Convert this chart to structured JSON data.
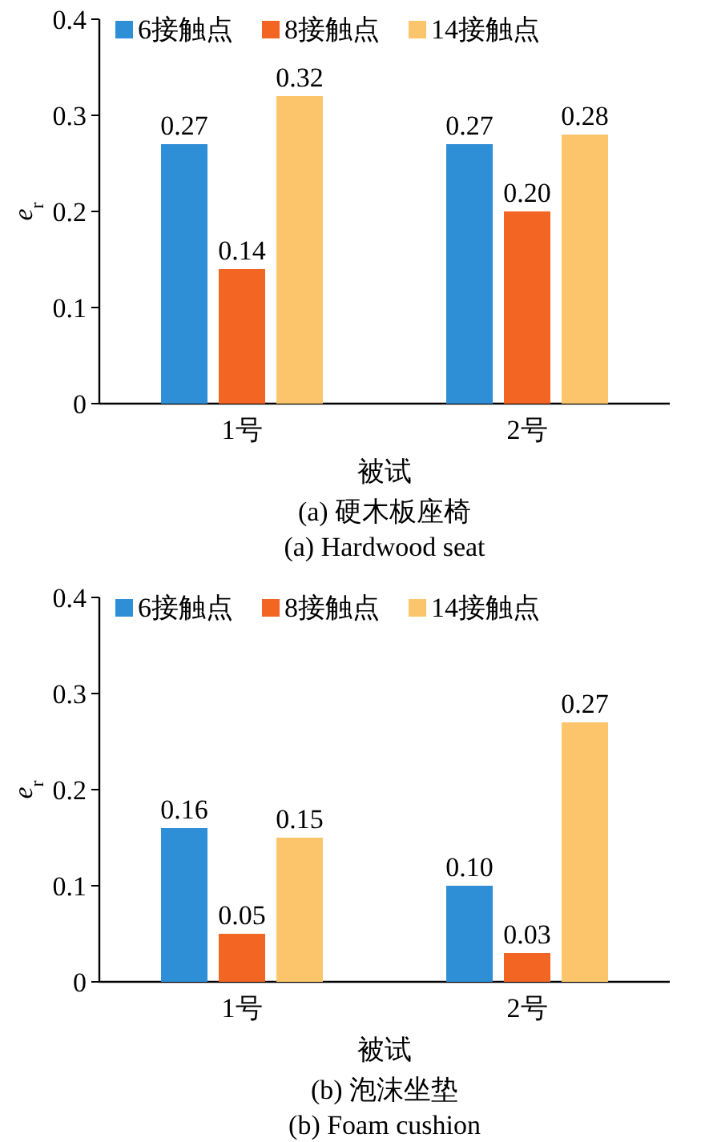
{
  "chart_data": [
    {
      "type": "bar",
      "title": "(a) 硬木板座椅",
      "subtitle": "(a) Hardwood seat",
      "xlabel": "被试",
      "ylabel": "e$_{r}$",
      "categories": [
        "1号",
        "2号"
      ],
      "series": [
        {
          "name": "6接触点",
          "color": "#2e8fd6",
          "values": [
            0.27,
            0.27
          ],
          "value_labels": [
            "0.27",
            "0.27"
          ]
        },
        {
          "name": "8接触点",
          "color": "#f26522",
          "values": [
            0.14,
            0.2
          ],
          "value_labels": [
            "0.14",
            "0.20"
          ]
        },
        {
          "name": "14接触点",
          "color": "#fdc56b",
          "values": [
            0.32,
            0.28
          ],
          "value_labels": [
            "0.32",
            "0.28"
          ]
        }
      ],
      "ylim": [
        0,
        0.4
      ],
      "yticks": [
        0,
        0.1,
        0.2,
        0.3,
        0.4
      ],
      "legend": "top",
      "grid": false
    },
    {
      "type": "bar",
      "title": "(b) 泡沫坐垫",
      "subtitle": "(b) Foam cushion",
      "xlabel": "被试",
      "ylabel": "e$_{r}$",
      "categories": [
        "1号",
        "2号"
      ],
      "series": [
        {
          "name": "6接触点",
          "color": "#2e8fd6",
          "values": [
            0.16,
            0.1
          ],
          "value_labels": [
            "0.16",
            "0.10"
          ]
        },
        {
          "name": "8接触点",
          "color": "#f26522",
          "values": [
            0.05,
            0.03
          ],
          "value_labels": [
            "0.05",
            "0.03"
          ]
        },
        {
          "name": "14接触点",
          "color": "#fdc56b",
          "values": [
            0.15,
            0.27
          ],
          "value_labels": [
            "0.15",
            "0.27"
          ]
        }
      ],
      "ylim": [
        0,
        0.4
      ],
      "yticks": [
        0,
        0.1,
        0.2,
        0.3,
        0.4
      ],
      "legend": "top",
      "grid": false
    }
  ]
}
